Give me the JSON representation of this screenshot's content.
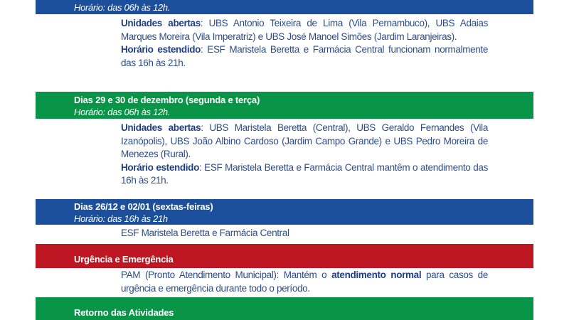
{
  "sections": [
    {
      "hours": "Horário: das 06h às 12h.",
      "open_label": "Unidades abertas",
      "open_text": ": UBS Antonio Teixeira de Lima (Vila Pernambuco), UBS Adaias Marques Moreira (Vila Imperatriz) e UBS José Manoel Simões (Jardim Laranjeiras).",
      "ext_label": "Horário estendido",
      "ext_text": ": ESF Maristela Beretta e Farmácia Central funcionam normalmente das 16h às 21h."
    },
    {
      "title": "Dias 29 e 30 de dezembro (segunda e terça)",
      "hours": "Horário: das 06h às 12h.",
      "open_label": "Unidades abertas",
      "open_text": ": UBS Maristela Beretta (Central), UBS Geraldo Fernandes (Vila Izanópolis), UBS João Albino Cardoso (Jardim Campo Grande) e UBS Pedro Moreira de Menezes (Rural).",
      "ext_label": "Horário estendido",
      "ext_text": ": ESF Maristela Beretta e Farmácia Central mantêm o atendimento das 16h às 21h."
    },
    {
      "title": "Dias 26/12 e 02/01 (sextas-feiras)",
      "hours": "Horário: das 16h às 21h",
      "text": "ESF Maristela Beretta e Farmácia Central"
    },
    {
      "title": "Urgência e Emergência",
      "text_a": "PAM (Pronto Atendimento Municipal): Mantém o ",
      "text_bold": "atendimento normal",
      "text_b": " para casos de urgência e emergência durante todo o período."
    },
    {
      "title": "Retorno das Atividades"
    }
  ],
  "colors": {
    "blue": "#1b4f9c",
    "green": "#0a9447",
    "red": "#be1622",
    "text": "#2b4c8c"
  }
}
